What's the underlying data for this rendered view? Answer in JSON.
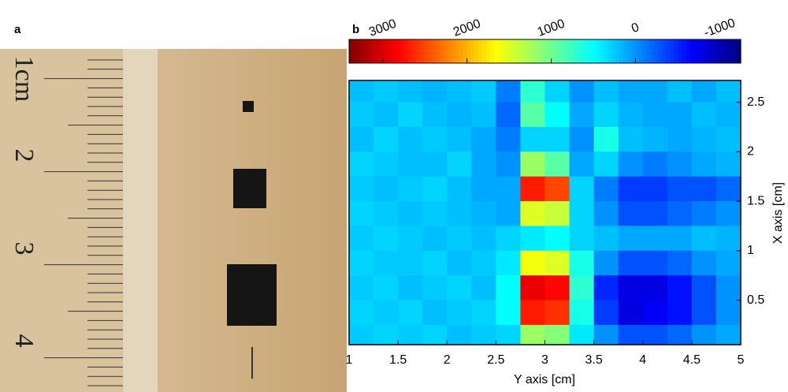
{
  "panel_labels": [
    "a",
    "b"
  ],
  "photo": {
    "ruler_labels": [
      "1cm",
      "2",
      "3",
      "4"
    ]
  },
  "chart_data": {
    "type": "heatmap",
    "xlabel": "Y axis [cm]",
    "ylabel": "X axis [cm]",
    "xlim": [
      1,
      5
    ],
    "ylim": [
      0.05,
      2.72
    ],
    "xticks": [
      1,
      1.5,
      2,
      2.5,
      3,
      3.5,
      4,
      4.5,
      5
    ],
    "yticks": [
      0.5,
      1,
      1.5,
      2,
      2.5
    ],
    "clim": [
      3400,
      -1250
    ],
    "cticks": [
      3000,
      2000,
      1000,
      0,
      -1000
    ],
    "colormap": "jet-reversed",
    "x": [
      1.125,
      1.375,
      1.625,
      1.875,
      2.125,
      2.375,
      2.625,
      2.875,
      3.125,
      3.375,
      3.625,
      3.875,
      4.125,
      4.375,
      4.625,
      4.875
    ],
    "y": [
      2.625,
      2.375,
      2.125,
      1.875,
      1.625,
      1.375,
      1.125,
      0.875,
      0.625,
      0.375,
      0.125
    ],
    "z": [
      [
        200,
        250,
        200,
        150,
        200,
        250,
        -100,
        700,
        300,
        0,
        200,
        100,
        100,
        200,
        100,
        200
      ],
      [
        250,
        200,
        300,
        200,
        150,
        200,
        -200,
        900,
        500,
        100,
        300,
        150,
        100,
        100,
        200,
        150
      ],
      [
        200,
        300,
        200,
        250,
        200,
        100,
        -100,
        300,
        300,
        0,
        600,
        200,
        150,
        100,
        150,
        200
      ],
      [
        300,
        250,
        200,
        200,
        300,
        100,
        0,
        1200,
        900,
        100,
        300,
        0,
        -100,
        0,
        100,
        150
      ],
      [
        250,
        200,
        250,
        300,
        200,
        100,
        100,
        2700,
        2500,
        300,
        -100,
        -400,
        -400,
        -300,
        -300,
        -200
      ],
      [
        300,
        250,
        200,
        250,
        200,
        150,
        100,
        1500,
        1400,
        300,
        0,
        -300,
        -300,
        -200,
        -100,
        0
      ],
      [
        250,
        300,
        250,
        200,
        250,
        200,
        300,
        400,
        500,
        300,
        200,
        100,
        100,
        100,
        200,
        150
      ],
      [
        300,
        250,
        250,
        300,
        200,
        250,
        400,
        1600,
        1500,
        600,
        0,
        -300,
        -300,
        -200,
        0,
        100
      ],
      [
        250,
        300,
        200,
        250,
        300,
        200,
        500,
        2900,
        2800,
        700,
        -500,
        -800,
        -800,
        -600,
        -300,
        0
      ],
      [
        300,
        250,
        300,
        200,
        250,
        300,
        500,
        2700,
        2600,
        600,
        -400,
        -800,
        -700,
        -600,
        -300,
        0
      ],
      [
        250,
        300,
        250,
        300,
        200,
        250,
        300,
        1200,
        1100,
        400,
        0,
        -300,
        -300,
        -200,
        0,
        100
      ]
    ]
  }
}
